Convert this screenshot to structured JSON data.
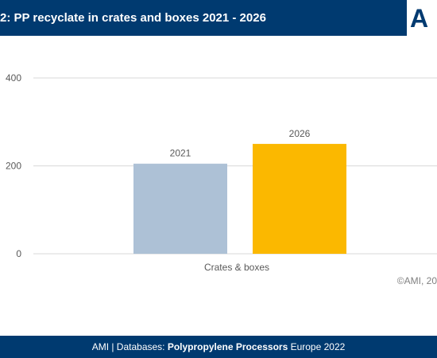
{
  "header": {
    "title": "2: PP recyclate in crates and boxes 2021 - 2026",
    "logo_text": "A"
  },
  "chart_data": {
    "type": "bar",
    "title": "2: PP recyclate in crates and boxes 2021 - 2026",
    "categories": [
      "Crates & boxes"
    ],
    "series": [
      {
        "name": "2021",
        "values": [
          205
        ],
        "color": "#adc1d6"
      },
      {
        "name": "2026",
        "values": [
          250
        ],
        "color": "#fbb800"
      }
    ],
    "y_ticks": [
      0,
      200,
      400
    ],
    "ylim": [
      0,
      400
    ],
    "grid": true,
    "xlabel": "",
    "ylabel": ""
  },
  "copyright": "©AMI, 20",
  "footer": {
    "prefix": "AMI | Databases: ",
    "product": "Polypropylene Processors",
    "suffix": " Europe 2022"
  }
}
